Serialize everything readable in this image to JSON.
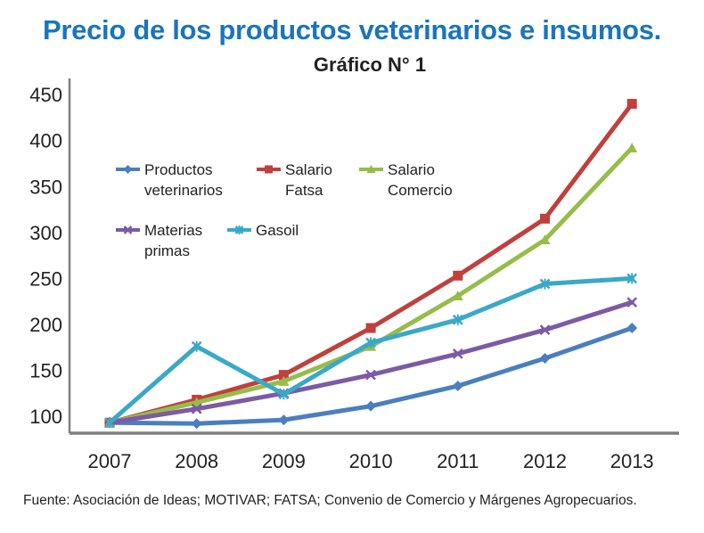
{
  "chart_data": {
    "type": "line",
    "title": "Precio de los productos veterinarios e insumos.",
    "subtitle": "Gráfico N° 1",
    "source": "Fuente: Asociación de Ideas; MOTIVAR; FATSA; Convenio de Comercio y Márgenes Agropecuarios.",
    "xlabel": "",
    "ylabel": "",
    "x": [
      "2007",
      "2008",
      "2009",
      "2010",
      "2011",
      "2012",
      "2013"
    ],
    "ylim": [
      88,
      460
    ],
    "yticks": [
      100,
      150,
      200,
      250,
      300,
      350,
      400,
      450
    ],
    "grid": false,
    "legend_position": "upper-left inside plot",
    "series": [
      {
        "name_lines": [
          "Productos",
          "veterinarios"
        ],
        "color": "#4a7ebf",
        "marker": "diamond",
        "values": [
          93,
          92,
          96,
          111,
          133,
          163,
          196
        ]
      },
      {
        "name_lines": [
          "Salario",
          "Fatsa"
        ],
        "color": "#c0403c",
        "marker": "square",
        "values": [
          93,
          118,
          145,
          196,
          253,
          315,
          440
        ]
      },
      {
        "name_lines": [
          "Salario",
          "Comercio"
        ],
        "color": "#95bd4a",
        "marker": "triangle",
        "values": [
          93,
          115,
          138,
          176,
          231,
          292,
          392
        ]
      },
      {
        "name_lines": [
          "Materias",
          "primas"
        ],
        "color": "#7c5aa6",
        "marker": "x",
        "values": [
          93,
          108,
          125,
          145,
          168,
          194,
          224
        ]
      },
      {
        "name_lines": [
          "Gasoil"
        ],
        "color": "#3aa8c9",
        "marker": "star",
        "values": [
          93,
          176,
          124,
          180,
          205,
          244,
          250
        ]
      }
    ]
  }
}
